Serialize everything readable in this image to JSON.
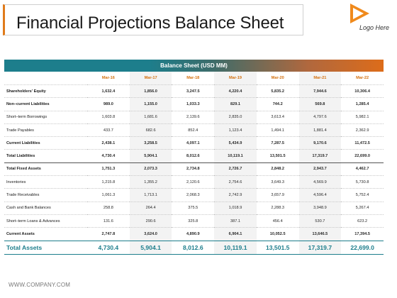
{
  "header": {
    "title": "Financial Projections Balance Sheet",
    "logo_text": "Logo Here",
    "accent_color": "#e07b1a",
    "logo_color": "#f08a1c"
  },
  "table": {
    "title": "Balance Sheet (USD MM)",
    "header_color": "#1d7e8c",
    "years": [
      "Mar-16",
      "Mar-17",
      "Mar-18",
      "Mar-19",
      "Mar-20",
      "Mar-21",
      "Mar-22"
    ],
    "rows": [
      {
        "label": "Shareholders' Equity",
        "values": [
          "1,632.4",
          "1,856.0",
          "3,247.5",
          "4,220.4",
          "5,835.2",
          "7,944.6",
          "10,306.4"
        ],
        "style": "bold"
      },
      {
        "label": "Non–current Liabilities",
        "values": [
          "989.0",
          "1,155.0",
          "1,033.3",
          "829.1",
          "744.2",
          "569.8",
          "1,285.4"
        ],
        "style": "bold"
      },
      {
        "label": "Short–term Borrowings",
        "values": [
          "1,603.8",
          "1,681.6",
          "2,139.6",
          "2,835.0",
          "3,613.4",
          "4,797.6",
          "5,982.1"
        ],
        "style": "normal"
      },
      {
        "label": "Trade Payables",
        "values": [
          "433.7",
          "682.6",
          "852.4",
          "1,123.4",
          "1,494.1",
          "1,881.4",
          "2,362.9"
        ],
        "style": "normal"
      },
      {
        "label": "Current Liabilities",
        "values": [
          "2,438.1",
          "3,258.5",
          "4,097.1",
          "5,434.9",
          "7,287.5",
          "9,170.6",
          "11,472.5"
        ],
        "style": "bold"
      },
      {
        "label": "Total Liabilities",
        "values": [
          "4,730.4",
          "5,904.1",
          "8,012.6",
          "10,119.1",
          "13,501.5",
          "17,319.7",
          "22,699.0"
        ],
        "style": "bold"
      },
      {
        "label": "Total Fixed Assets",
        "values": [
          "1,751.3",
          "2,073.3",
          "2,734.8",
          "2,726.7",
          "2,848.2",
          "2,943.7",
          "4,462.7"
        ],
        "style": "bold-top"
      },
      {
        "label": "Inventories",
        "values": [
          "1,215.8",
          "1,355.2",
          "2,120.6",
          "2,754.6",
          "3,649.3",
          "4,569.9",
          "5,730.8"
        ],
        "style": "normal"
      },
      {
        "label": "Trade Receivables",
        "values": [
          "1,061.3",
          "1,713.1",
          "2,068.3",
          "2,742.9",
          "3,657.9",
          "4,596.4",
          "5,752.4"
        ],
        "style": "normal"
      },
      {
        "label": "Cash and Bank Balances",
        "values": [
          "258.8",
          "264.4",
          "375.5",
          "1,018.9",
          "2,288.3",
          "3,948.9",
          "5,267.4"
        ],
        "style": "normal"
      },
      {
        "label": "Short–term Loans & Advances",
        "values": [
          "131.6",
          "290.6",
          "325.8",
          "387.1",
          "456.4",
          "530.7",
          "623.2"
        ],
        "style": "normal"
      },
      {
        "label": "Current Assets",
        "values": [
          "2,747.8",
          "3,624.0",
          "4,890.9",
          "6,904.1",
          "10,052.5",
          "13,646.5",
          "17,394.5"
        ],
        "style": "bold"
      },
      {
        "label": "Total Assets",
        "values": [
          "4,730.4",
          "5,904.1",
          "8,012.6",
          "10,119.1",
          "13,501.5",
          "17,319.7",
          "22,699.0"
        ],
        "style": "total"
      }
    ]
  },
  "footer": {
    "link_text": "WWW.COMPANY.COM"
  }
}
